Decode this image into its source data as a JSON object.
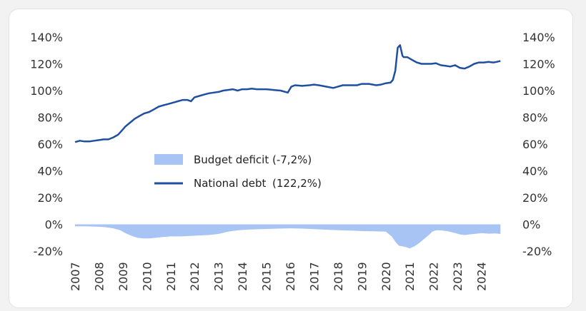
{
  "chart_data": {
    "type": "line",
    "title": "",
    "xlabel": "",
    "ylabel": "",
    "ylim": [
      -20,
      140
    ],
    "xlim": [
      2007,
      2025
    ],
    "x_ticks": [
      "2007",
      "2008",
      "2009",
      "2010",
      "2011",
      "2012",
      "2013",
      "2014",
      "2015",
      "2016",
      "2017",
      "2018",
      "2019",
      "2020",
      "2021",
      "2022",
      "2023",
      "2024"
    ],
    "y_ticks": [
      "140%",
      "120%",
      "100%",
      "80%",
      "60%",
      "40%",
      "20%",
      "0%",
      "-20%"
    ],
    "grid": false,
    "legend_placement": "center-left",
    "colors": {
      "debt": "#1f4fa0",
      "deficit": "#a8c4f5",
      "axis": "#333333"
    },
    "series": [
      {
        "name": "Budget deficit",
        "type": "area",
        "legend_value": "(-7,2%)",
        "x": [
          2007.0,
          2007.5,
          2008.0,
          2008.3,
          2008.6,
          2008.9,
          2009.1,
          2009.35,
          2009.6,
          2009.85,
          2010.1,
          2010.4,
          2010.7,
          2011.0,
          2011.4,
          2011.8,
          2012.2,
          2012.6,
          2013.0,
          2013.4,
          2013.8,
          2014.2,
          2014.6,
          2015.0,
          2015.5,
          2016.0,
          2016.5,
          2017.0,
          2017.5,
          2018.0,
          2018.5,
          2019.0,
          2019.5,
          2020.0,
          2020.25,
          2020.4,
          2020.55,
          2020.7,
          2020.85,
          2021.0,
          2021.2,
          2021.4,
          2021.6,
          2021.8,
          2021.95,
          2022.1,
          2022.3,
          2022.6,
          2022.9,
          2023.1,
          2023.3,
          2023.5,
          2023.8,
          2024.0,
          2024.3,
          2024.6,
          2024.8
        ],
        "y": [
          -1.5,
          -1.5,
          -1.8,
          -2.2,
          -3,
          -4.5,
          -6.5,
          -8.5,
          -10,
          -10.5,
          -10.5,
          -10,
          -9.5,
          -9,
          -9,
          -8.7,
          -8.3,
          -8,
          -7.2,
          -5.5,
          -4.5,
          -4,
          -3.7,
          -3.5,
          -3.2,
          -3,
          -3.2,
          -3.6,
          -4,
          -4.4,
          -4.7,
          -5,
          -5.2,
          -5.5,
          -9,
          -13,
          -16,
          -16.5,
          -17,
          -18,
          -16.5,
          -14,
          -11,
          -8,
          -5.5,
          -4.5,
          -4.5,
          -5.2,
          -6.5,
          -7.5,
          -8,
          -7.5,
          -7,
          -6.5,
          -7,
          -6.8,
          -7.2
        ]
      },
      {
        "name": "National debt",
        "type": "line",
        "legend_value": "(122,2%)",
        "x": [
          2007.0,
          2007.2,
          2007.4,
          2007.6,
          2007.8,
          2008.0,
          2008.2,
          2008.4,
          2008.6,
          2008.8,
          2009.0,
          2009.1,
          2009.3,
          2009.5,
          2009.7,
          2009.9,
          2010.1,
          2010.3,
          2010.5,
          2010.7,
          2010.9,
          2011.1,
          2011.3,
          2011.5,
          2011.7,
          2011.85,
          2012.0,
          2012.2,
          2012.4,
          2012.6,
          2012.8,
          2013.0,
          2013.2,
          2013.4,
          2013.6,
          2013.8,
          2014.0,
          2014.2,
          2014.4,
          2014.6,
          2014.8,
          2015.0,
          2015.3,
          2015.6,
          2015.9,
          2016.05,
          2016.2,
          2016.5,
          2016.8,
          2017.0,
          2017.2,
          2017.5,
          2017.8,
          2018.0,
          2018.2,
          2018.5,
          2018.8,
          2019.0,
          2019.3,
          2019.6,
          2019.8,
          2020.0,
          2020.2,
          2020.3,
          2020.4,
          2020.5,
          2020.6,
          2020.7,
          2020.75,
          2020.9,
          2021.1,
          2021.3,
          2021.5,
          2021.7,
          2021.9,
          2022.1,
          2022.3,
          2022.5,
          2022.7,
          2022.9,
          2023.1,
          2023.3,
          2023.5,
          2023.7,
          2023.9,
          2024.1,
          2024.3,
          2024.5,
          2024.65,
          2024.8
        ],
        "y": [
          61.5,
          62.5,
          62,
          62,
          62.5,
          63,
          63.5,
          63.5,
          65,
          67,
          71,
          73,
          76,
          79,
          81,
          83,
          84,
          86,
          88,
          89,
          90,
          91,
          92,
          93,
          93,
          92,
          95,
          96,
          97,
          98,
          98.5,
          99,
          100,
          100.5,
          101,
          100,
          101,
          101,
          101.5,
          101,
          101,
          101,
          100.5,
          100,
          98.5,
          103,
          104,
          103.5,
          104,
          104.5,
          104,
          103,
          102,
          103,
          104,
          104,
          104,
          105,
          105,
          104,
          104.5,
          105.5,
          106,
          108,
          115,
          132,
          134,
          126,
          125,
          125,
          123,
          121,
          120,
          120,
          120,
          120.5,
          119,
          118.5,
          118,
          119,
          117,
          116.5,
          118,
          120,
          121,
          121,
          121.5,
          121,
          121.5,
          122.2
        ]
      }
    ]
  }
}
